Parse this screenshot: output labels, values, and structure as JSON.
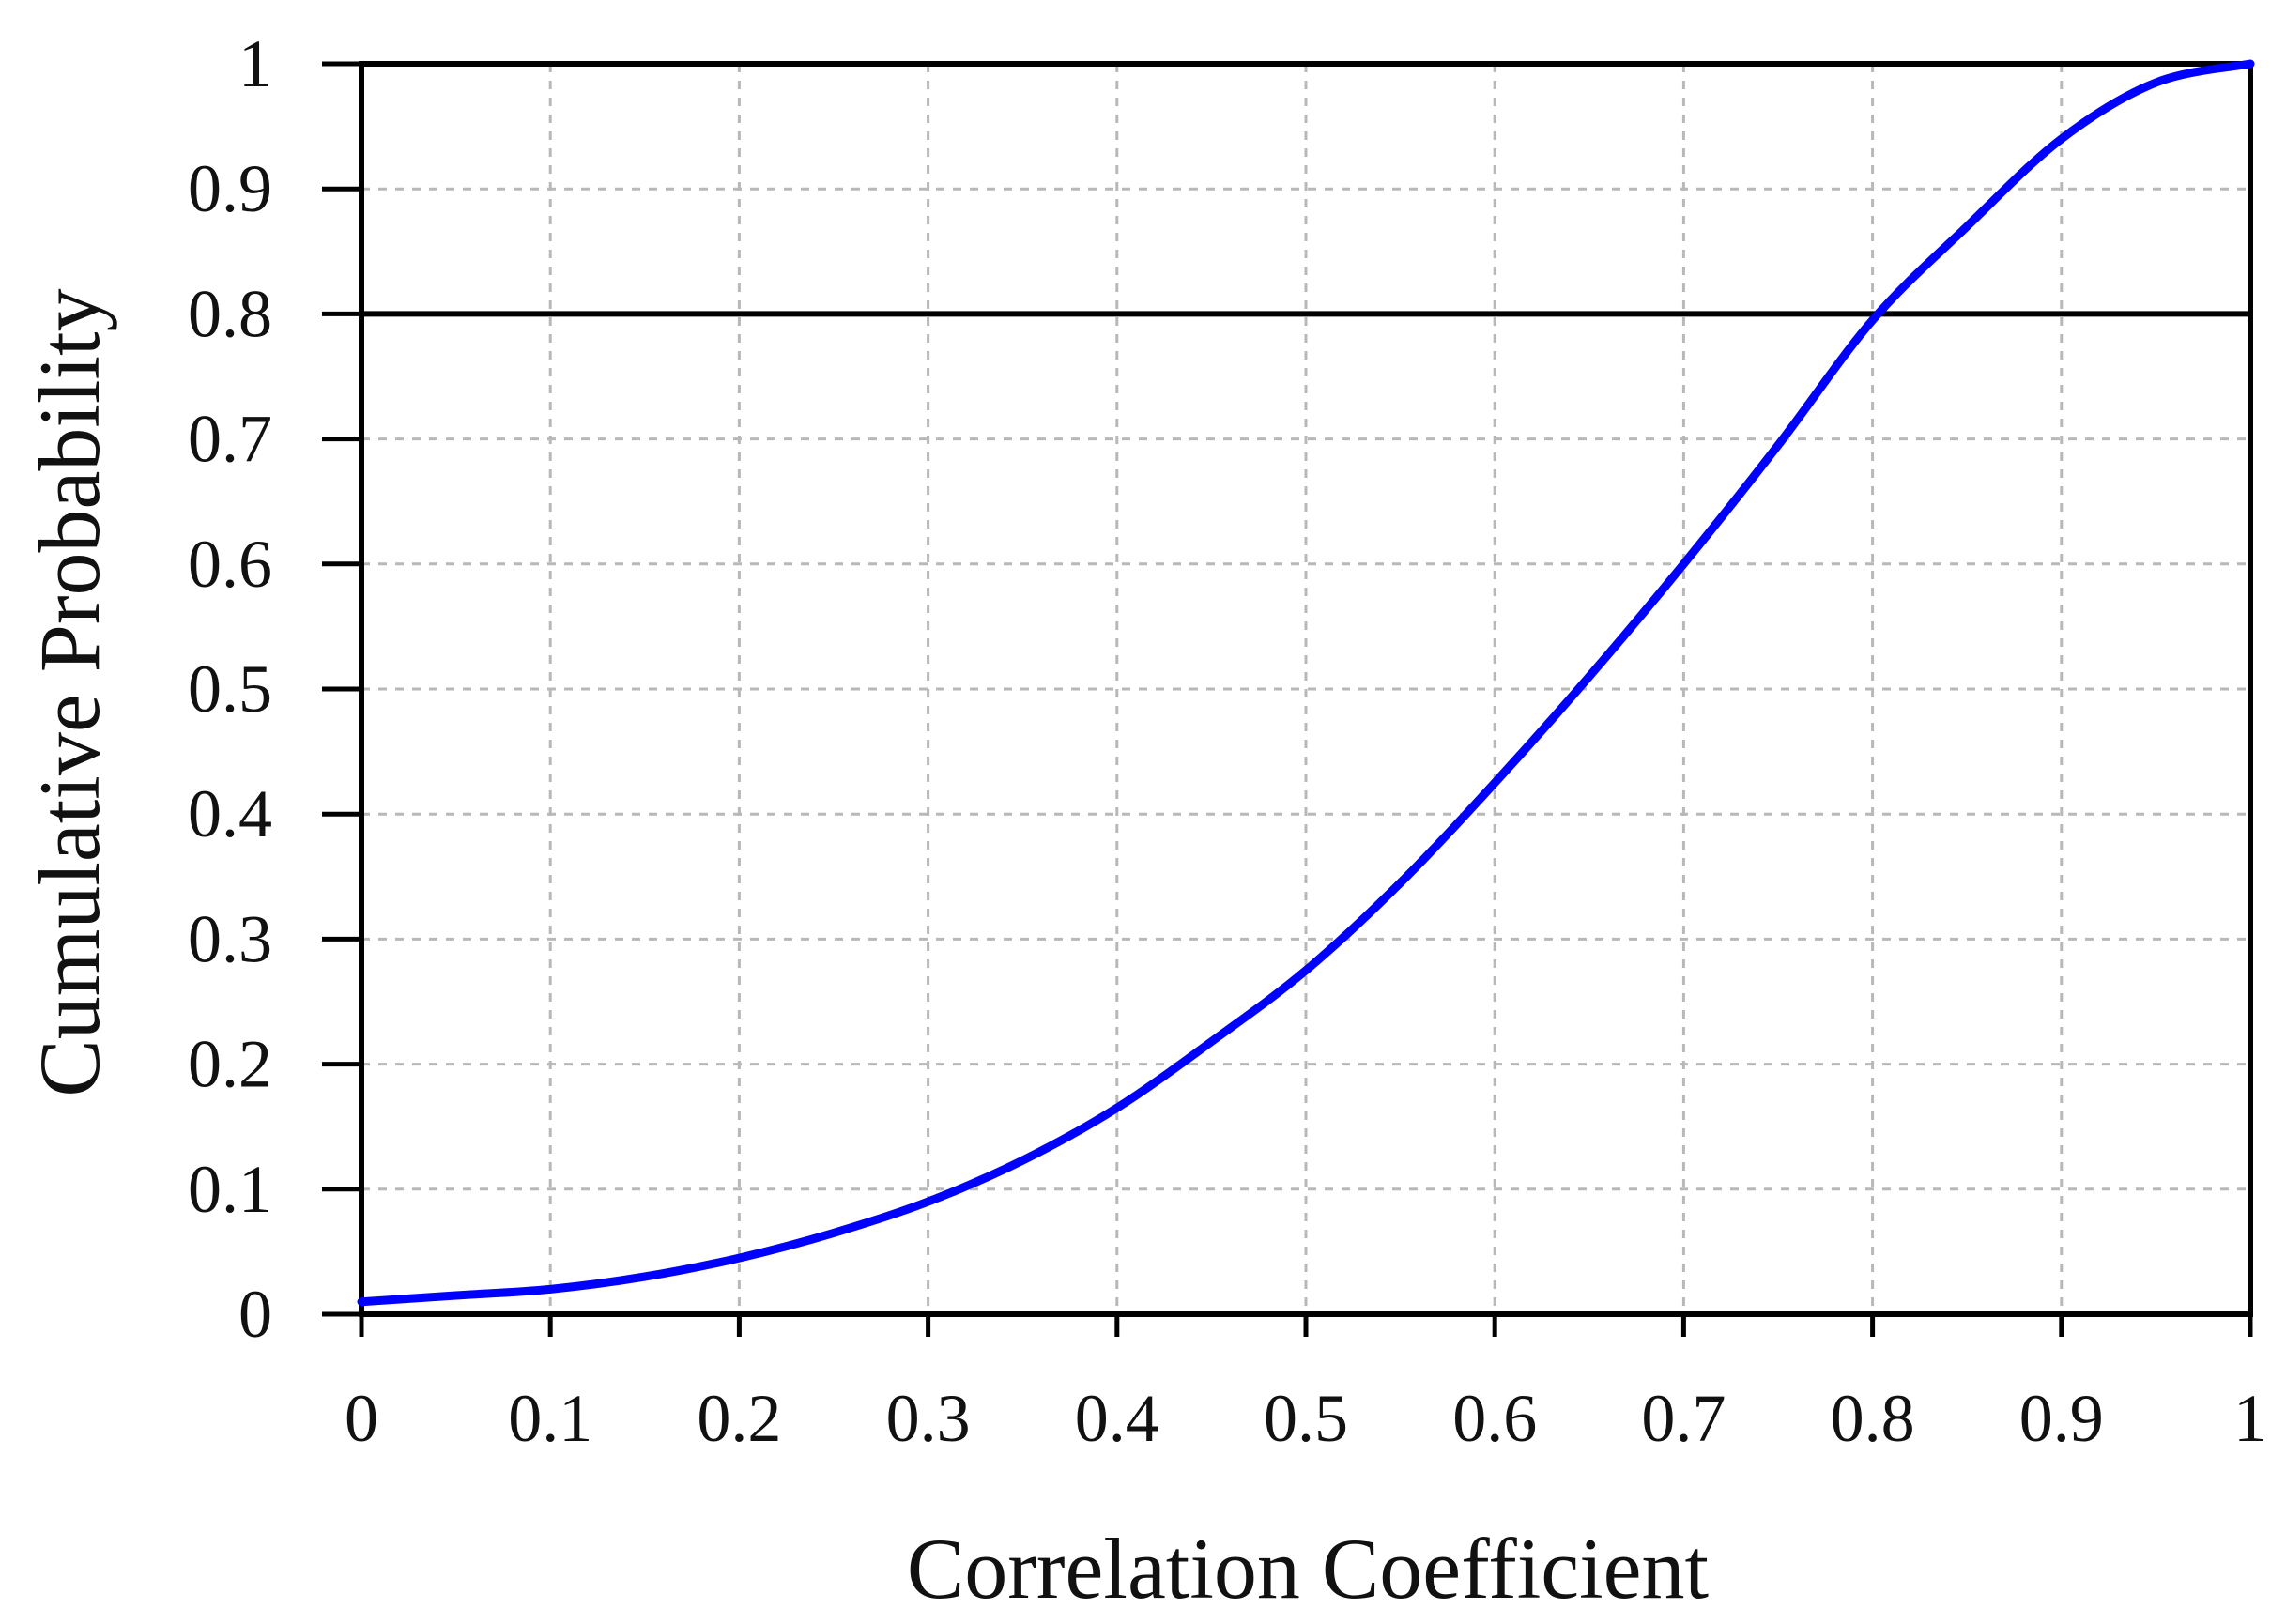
{
  "chart_data": {
    "type": "line",
    "title": "",
    "xlabel": "Correlation Coefficient",
    "ylabel": "Cumulative Probability",
    "xlim": [
      0,
      1
    ],
    "ylim": [
      0,
      1
    ],
    "grid": true,
    "x_ticks": [
      0,
      0.1,
      0.2,
      0.3,
      0.4,
      0.5,
      0.6,
      0.7,
      0.8,
      0.9,
      1
    ],
    "y_ticks": [
      0,
      0.1,
      0.2,
      0.3,
      0.4,
      0.5,
      0.6,
      0.7,
      0.8,
      0.9,
      1
    ],
    "x_tick_labels": [
      "0",
      "0.1",
      "0.2",
      "0.3",
      "0.4",
      "0.5",
      "0.6",
      "0.7",
      "0.8",
      "0.9",
      "1"
    ],
    "y_tick_labels": [
      "0",
      "0.1",
      "0.2",
      "0.3",
      "0.4",
      "0.5",
      "0.6",
      "0.7",
      "0.8",
      "0.9",
      "1"
    ],
    "reference_line": {
      "y": 0.8
    },
    "colors": {
      "series": "#0000ff",
      "axes": "#000000",
      "grid": "#b8b8b8"
    },
    "series": [
      {
        "x": [
          0,
          0.05,
          0.1,
          0.15,
          0.2,
          0.25,
          0.3,
          0.35,
          0.4,
          0.45,
          0.5,
          0.55,
          0.6,
          0.65,
          0.7,
          0.75,
          0.8,
          0.85,
          0.9,
          0.95,
          1.0
        ],
        "y": [
          0.01,
          0.015,
          0.02,
          0.03,
          0.045,
          0.065,
          0.09,
          0.123,
          0.165,
          0.218,
          0.275,
          0.345,
          0.425,
          0.51,
          0.6,
          0.695,
          0.795,
          0.87,
          0.94,
          0.985,
          1.0
        ]
      }
    ]
  }
}
